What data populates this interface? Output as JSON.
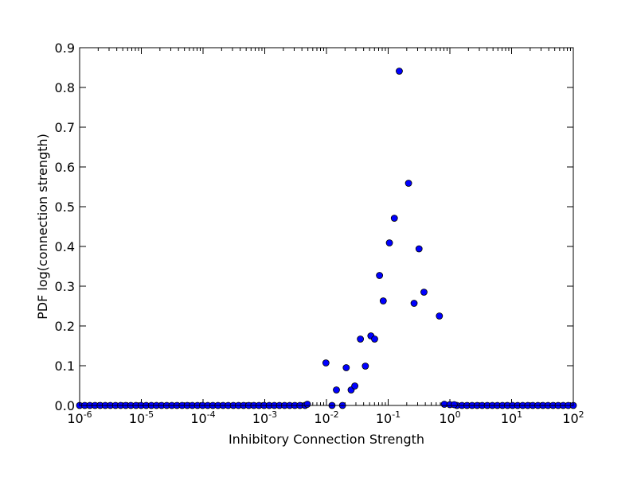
{
  "chart_data": {
    "type": "scatter",
    "title": "",
    "xlabel": "Inhibitory Connection Strength",
    "ylabel": "PDF log(connection strength)",
    "xscale": "log",
    "xlim": [
      1e-06,
      100
    ],
    "ylim": [
      0,
      0.9
    ],
    "x_ticks": [
      {
        "value": 1e-06,
        "base": "10",
        "exp": "-6"
      },
      {
        "value": 1e-05,
        "base": "10",
        "exp": "-5"
      },
      {
        "value": 0.0001,
        "base": "10",
        "exp": "-4"
      },
      {
        "value": 0.001,
        "base": "10",
        "exp": "-3"
      },
      {
        "value": 0.01,
        "base": "10",
        "exp": "-2"
      },
      {
        "value": 0.1,
        "base": "10",
        "exp": "-1"
      },
      {
        "value": 1,
        "base": "10",
        "exp": "0"
      },
      {
        "value": 10,
        "base": "10",
        "exp": "1"
      },
      {
        "value": 100,
        "base": "10",
        "exp": "2"
      }
    ],
    "y_ticks": [
      "0.0",
      "0.1",
      "0.2",
      "0.3",
      "0.4",
      "0.5",
      "0.6",
      "0.7",
      "0.8",
      "0.9"
    ],
    "grid": false,
    "marker_color": "#0000ff",
    "marker_edge_color": "#000000",
    "points": [
      {
        "x": 0.0049,
        "y": 0.003
      },
      {
        "x": 0.0098,
        "y": 0.107
      },
      {
        "x": 0.0123,
        "y": 0.0
      },
      {
        "x": 0.0145,
        "y": 0.039
      },
      {
        "x": 0.0182,
        "y": 0.0
      },
      {
        "x": 0.0209,
        "y": 0.095
      },
      {
        "x": 0.0251,
        "y": 0.039
      },
      {
        "x": 0.0288,
        "y": 0.049
      },
      {
        "x": 0.0355,
        "y": 0.167
      },
      {
        "x": 0.0427,
        "y": 0.099
      },
      {
        "x": 0.0525,
        "y": 0.175
      },
      {
        "x": 0.0603,
        "y": 0.167
      },
      {
        "x": 0.0724,
        "y": 0.327
      },
      {
        "x": 0.0832,
        "y": 0.263
      },
      {
        "x": 0.1047,
        "y": 0.409
      },
      {
        "x": 0.1259,
        "y": 0.471
      },
      {
        "x": 0.1514,
        "y": 0.841
      },
      {
        "x": 0.2138,
        "y": 0.559
      },
      {
        "x": 0.263,
        "y": 0.257
      },
      {
        "x": 0.3162,
        "y": 0.394
      },
      {
        "x": 0.3802,
        "y": 0.285
      },
      {
        "x": 0.6761,
        "y": 0.225
      },
      {
        "x": 0.8128,
        "y": 0.003
      },
      {
        "x": 1.0,
        "y": 0.002
      },
      {
        "x": 1.1749,
        "y": 0.002
      }
    ],
    "zero_baseline": {
      "left_range": [
        1e-06,
        0.0045
      ],
      "right_range": [
        1.3,
        100
      ],
      "points_per_decade": 12,
      "y": 0
    }
  }
}
